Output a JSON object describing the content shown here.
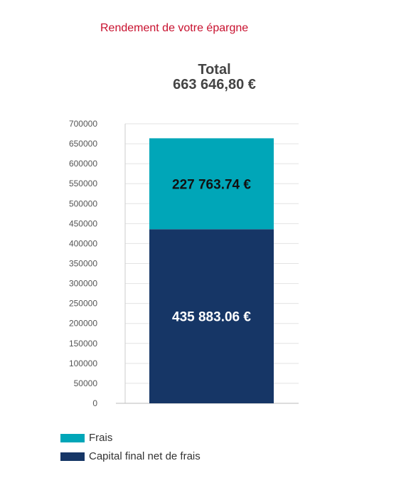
{
  "heading": "Rendement de votre épargne",
  "total": {
    "label": "Total",
    "value": "663 646,80 €"
  },
  "colors": {
    "frais": "#00a6b8",
    "capital": "#163666",
    "heading": "#c8102e",
    "grid": "#e3e3e3"
  },
  "chart_data": {
    "type": "bar",
    "stacked": true,
    "ylim": [
      0,
      700000
    ],
    "yticks": [
      "0",
      "50000",
      "100000",
      "150000",
      "200000",
      "250000",
      "300000",
      "350000",
      "400000",
      "450000",
      "500000",
      "550000",
      "600000",
      "650000",
      "700000"
    ],
    "grid": true,
    "legend_position": "bottom-left",
    "series": [
      {
        "name": "Capital final net de frais",
        "value": 435883.06,
        "label": "435 883.06 €",
        "color": "#163666",
        "label_color": "#ffffff"
      },
      {
        "name": "Frais",
        "value": 227763.74,
        "label": "227 763.74 €",
        "color": "#00a6b8",
        "label_color": "#111111"
      }
    ]
  },
  "legend": {
    "frais": "Frais",
    "capital": "Capital final net de frais"
  }
}
